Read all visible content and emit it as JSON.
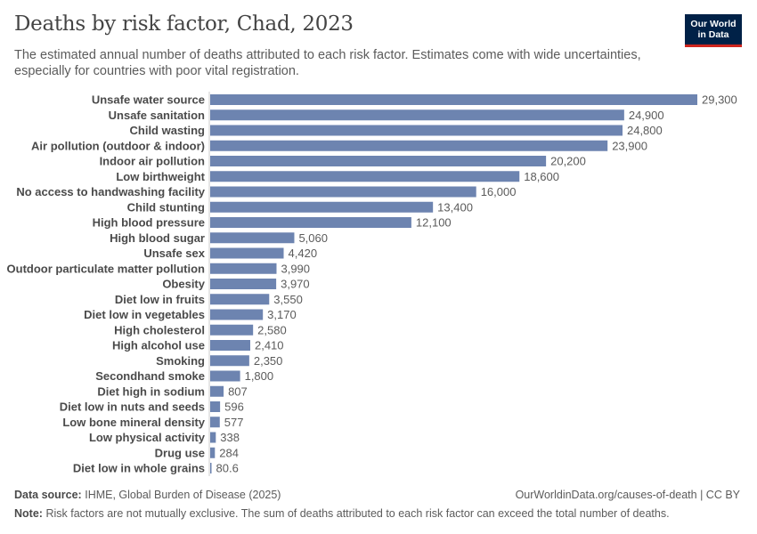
{
  "header": {
    "title": "Deaths by risk factor, Chad, 2023",
    "subtitle": "The estimated annual number of deaths attributed to each risk factor. Estimates come with wide uncertainties, especially for countries with poor vital registration.",
    "logo_line1": "Our World",
    "logo_line2": "in Data"
  },
  "colors": {
    "bar": "#6d84b0",
    "label": "#4a4a4a",
    "value": "#5b5b5b",
    "axis": "#cccccc",
    "logo_bg": "#002147",
    "logo_accent": "#ce261e"
  },
  "chart_data": {
    "type": "bar",
    "orientation": "horizontal",
    "title": "Deaths by risk factor, Chad, 2023",
    "xlabel": "",
    "ylabel": "",
    "xlim": [
      0,
      29300
    ],
    "grid": false,
    "categories": [
      "Unsafe water source",
      "Unsafe sanitation",
      "Child wasting",
      "Air pollution (outdoor & indoor)",
      "Indoor air pollution",
      "Low birthweight",
      "No access to handwashing facility",
      "Child stunting",
      "High blood pressure",
      "High blood sugar",
      "Unsafe sex",
      "Outdoor particulate matter pollution",
      "Obesity",
      "Diet low in fruits",
      "Diet low in vegetables",
      "High cholesterol",
      "High alcohol use",
      "Smoking",
      "Secondhand smoke",
      "Diet high in sodium",
      "Diet low in nuts and seeds",
      "Low bone mineral density",
      "Low physical activity",
      "Drug use",
      "Diet low in whole grains"
    ],
    "values": [
      29300,
      24900,
      24800,
      23900,
      20200,
      18600,
      16000,
      13400,
      12100,
      5060,
      4420,
      3990,
      3970,
      3550,
      3170,
      2580,
      2410,
      2350,
      1800,
      807,
      596,
      577,
      338,
      284,
      80.6
    ],
    "value_labels": [
      "29,300",
      "24,900",
      "24,800",
      "23,900",
      "20,200",
      "18,600",
      "16,000",
      "13,400",
      "12,100",
      "5,060",
      "4,420",
      "3,990",
      "3,970",
      "3,550",
      "3,170",
      "2,580",
      "2,410",
      "2,350",
      "1,800",
      "807",
      "596",
      "577",
      "338",
      "284",
      "80.6"
    ]
  },
  "footer": {
    "source_label": "Data source:",
    "source_text": "IHME, Global Burden of Disease (2025)",
    "url_text": "OurWorldinData.org/causes-of-death | CC BY",
    "note_label": "Note:",
    "note_text": "Risk factors are not mutually exclusive. The sum of deaths attributed to each risk factor can exceed the total number of deaths."
  }
}
